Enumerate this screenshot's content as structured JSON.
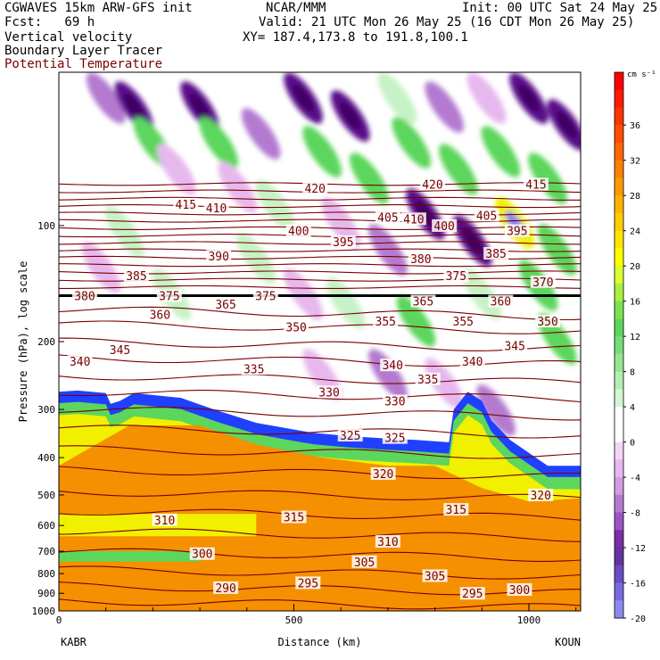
{
  "header": {
    "line1_left": "CGWAVES 15km ARW-GFS init",
    "line1_center": "NCAR/MMM",
    "line1_right": "Init: 00 UTC Sat 24 May 25",
    "fcst": "Fcst:   69 h",
    "valid": "Valid: 21 UTC Mon 26 May 25 (16 CDT Mon 26 May 25)",
    "field1": "Vertical velocity",
    "xy": "XY= 187.4,173.8 to 191.8,100.1",
    "field2": "Boundary Layer Tracer",
    "field3": "Potential Temperature"
  },
  "colors": {
    "theta_contour": "#7a0000",
    "strong_down": "#5a0c8a",
    "down": "#b37ad0",
    "weak_down": "#e6b8ee",
    "weak_up": "#c6f2c6",
    "up": "#5cd65c",
    "strong_up": "#f0f000",
    "tracer_low": "#f0f000",
    "tracer_high": "#f59000",
    "tracer_edge": "#2040ff"
  },
  "chart_data": {
    "type": "heatmap",
    "xlabel": "Distance (km)",
    "ylabel": "Pressure (hPa), log scale",
    "x_start_label": "KABR",
    "x_end_label": "KOUN",
    "xlim": [
      0,
      1110
    ],
    "ylim": [
      1000,
      40
    ],
    "log_y": true,
    "x_ticks": [
      {
        "v": 0,
        "label": "0"
      },
      {
        "v": 500,
        "label": "500"
      },
      {
        "v": 1000,
        "label": "1000"
      }
    ],
    "y_ticks": [
      {
        "v": 100,
        "label": "100"
      },
      {
        "v": 200,
        "label": "200"
      },
      {
        "v": 300,
        "label": "300"
      },
      {
        "v": 400,
        "label": "400"
      },
      {
        "v": 500,
        "label": "500"
      },
      {
        "v": 600,
        "label": "600"
      },
      {
        "v": 700,
        "label": "700"
      },
      {
        "v": 800,
        "label": "800"
      },
      {
        "v": 900,
        "label": "900"
      },
      {
        "v": 1000,
        "label": "1000"
      }
    ],
    "colorbar": {
      "unit": "cm s⁻¹",
      "levels": [
        {
          "v": 40,
          "c": "#ff0000"
        },
        {
          "v": 38,
          "c": "#ff1a00"
        },
        {
          "v": 36,
          "c": "#ff3300"
        },
        {
          "v": 34,
          "c": "#ff4d00"
        },
        {
          "v": 32,
          "c": "#ff6600"
        },
        {
          "v": 30,
          "c": "#ff8000"
        },
        {
          "v": 28,
          "c": "#ff9900"
        },
        {
          "v": 26,
          "c": "#ffb300"
        },
        {
          "v": 24,
          "c": "#ffcc00"
        },
        {
          "v": 22,
          "c": "#ffe600"
        },
        {
          "v": 20,
          "c": "#ffff00"
        },
        {
          "v": 18,
          "c": "#d8ff30"
        },
        {
          "v": 16,
          "c": "#a8f040"
        },
        {
          "v": 14,
          "c": "#7ee050"
        },
        {
          "v": 12,
          "c": "#5cd65c"
        },
        {
          "v": 10,
          "c": "#78dc78"
        },
        {
          "v": 8,
          "c": "#95e595"
        },
        {
          "v": 6,
          "c": "#b3eeb3"
        },
        {
          "v": 4,
          "c": "#d2f7d2"
        },
        {
          "v": 2,
          "c": "#ffffff"
        },
        {
          "v": 0,
          "c": "#ffffff"
        },
        {
          "v": -2,
          "c": "#f3d6f5"
        },
        {
          "v": -4,
          "c": "#e6b8ee"
        },
        {
          "v": -6,
          "c": "#d49ae2"
        },
        {
          "v": -8,
          "c": "#b37ad0"
        },
        {
          "v": -10,
          "c": "#9a55c2"
        },
        {
          "v": -12,
          "c": "#7a2ea8"
        },
        {
          "v": -14,
          "c": "#66339e"
        },
        {
          "v": -16,
          "c": "#6a4cc4"
        },
        {
          "v": -18,
          "c": "#7a6ae0"
        },
        {
          "v": -20,
          "c": "#8a8af0"
        }
      ],
      "tick_labels": [
        "36",
        "32",
        "28",
        "24",
        "20",
        "16",
        "12",
        "8",
        "4",
        "0",
        "-4",
        "-8",
        "-12",
        "-16",
        "-20"
      ]
    },
    "theta_labels": [
      {
        "x": 270,
        "p": 88,
        "t": "415"
      },
      {
        "x": 335,
        "p": 90,
        "t": "410"
      },
      {
        "x": 510,
        "p": 103,
        "t": "400"
      },
      {
        "x": 605,
        "p": 110,
        "t": "395"
      },
      {
        "x": 340,
        "p": 120,
        "t": "390"
      },
      {
        "x": 165,
        "p": 135,
        "t": "385"
      },
      {
        "x": 55,
        "p": 152,
        "t": "380"
      },
      {
        "x": 235,
        "p": 152,
        "t": "375"
      },
      {
        "x": 440,
        "p": 152,
        "t": "375"
      },
      {
        "x": 355,
        "p": 160,
        "t": "365"
      },
      {
        "x": 215,
        "p": 170,
        "t": "360"
      },
      {
        "x": 545,
        "p": 80,
        "t": "420"
      },
      {
        "x": 700,
        "p": 95,
        "t": "405"
      },
      {
        "x": 755,
        "p": 96,
        "t": "410"
      },
      {
        "x": 820,
        "p": 100,
        "t": "400"
      },
      {
        "x": 910,
        "p": 94,
        "t": "405"
      },
      {
        "x": 975,
        "p": 103,
        "t": "395"
      },
      {
        "x": 930,
        "p": 118,
        "t": "385"
      },
      {
        "x": 770,
        "p": 122,
        "t": "380"
      },
      {
        "x": 845,
        "p": 135,
        "t": "375"
      },
      {
        "x": 1015,
        "p": 78,
        "t": "415"
      },
      {
        "x": 795,
        "p": 78,
        "t": "420"
      },
      {
        "x": 1030,
        "p": 140,
        "t": "370"
      },
      {
        "x": 775,
        "p": 157,
        "t": "365"
      },
      {
        "x": 940,
        "p": 157,
        "t": "360"
      },
      {
        "x": 695,
        "p": 177,
        "t": "355"
      },
      {
        "x": 860,
        "p": 177,
        "t": "355"
      },
      {
        "x": 1040,
        "p": 177,
        "t": "350"
      },
      {
        "x": 505,
        "p": 183,
        "t": "350"
      },
      {
        "x": 970,
        "p": 205,
        "t": "345"
      },
      {
        "x": 130,
        "p": 210,
        "t": "345"
      },
      {
        "x": 45,
        "p": 225,
        "t": "340"
      },
      {
        "x": 710,
        "p": 230,
        "t": "340"
      },
      {
        "x": 880,
        "p": 225,
        "t": "340"
      },
      {
        "x": 415,
        "p": 235,
        "t": "335"
      },
      {
        "x": 785,
        "p": 250,
        "t": "335"
      },
      {
        "x": 575,
        "p": 270,
        "t": "330"
      },
      {
        "x": 715,
        "p": 285,
        "t": "330"
      },
      {
        "x": 620,
        "p": 350,
        "t": "325"
      },
      {
        "x": 715,
        "p": 355,
        "t": "325"
      },
      {
        "x": 690,
        "p": 440,
        "t": "320"
      },
      {
        "x": 1025,
        "p": 500,
        "t": "320"
      },
      {
        "x": 500,
        "p": 570,
        "t": "315"
      },
      {
        "x": 845,
        "p": 545,
        "t": "315"
      },
      {
        "x": 225,
        "p": 580,
        "t": "310"
      },
      {
        "x": 700,
        "p": 660,
        "t": "310"
      },
      {
        "x": 305,
        "p": 710,
        "t": "300"
      },
      {
        "x": 650,
        "p": 745,
        "t": "305"
      },
      {
        "x": 800,
        "p": 810,
        "t": "305"
      },
      {
        "x": 355,
        "p": 870,
        "t": "290"
      },
      {
        "x": 530,
        "p": 845,
        "t": "295"
      },
      {
        "x": 880,
        "p": 900,
        "t": "295"
      },
      {
        "x": 980,
        "p": 880,
        "t": "300"
      }
    ]
  }
}
